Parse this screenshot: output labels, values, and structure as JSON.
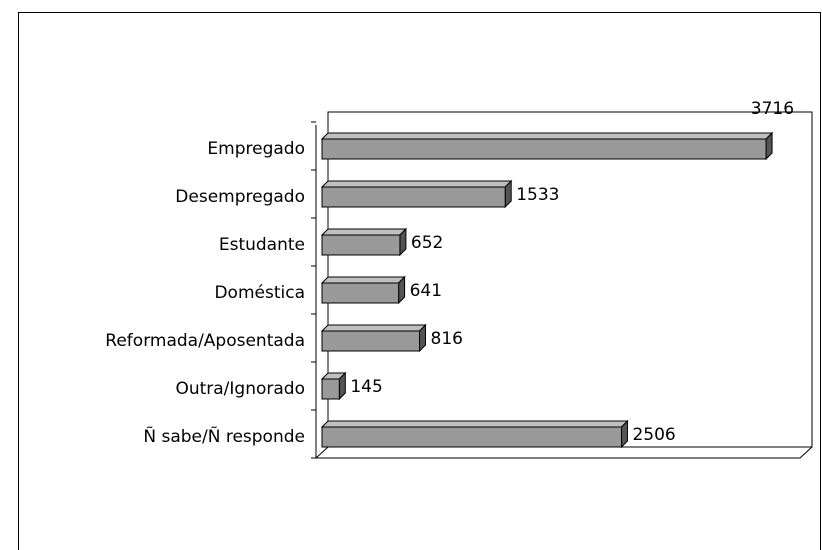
{
  "chart_data": {
    "type": "bar",
    "orientation": "horizontal",
    "categories": [
      "Empregado",
      "Desempregado",
      "Estudante",
      "Doméstica",
      "Reformada/Aposentada",
      "Outra/Ignorado",
      "Ñ sabe/Ñ responde"
    ],
    "values": [
      3716,
      1533,
      652,
      641,
      816,
      145,
      2506
    ],
    "color": "#999999",
    "xlim": [
      0,
      4000
    ]
  }
}
